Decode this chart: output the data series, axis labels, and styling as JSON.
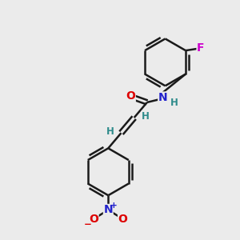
{
  "bg_color": "#ebebeb",
  "bond_color": "#1a1a1a",
  "bond_width": 1.8,
  "atom_colors": {
    "O": "#dd0000",
    "N": "#2222cc",
    "F": "#cc00cc",
    "H": "#2e8b8b",
    "C": "#1a1a1a"
  },
  "font_size": 9.5,
  "fig_width": 3.0,
  "fig_height": 3.0,
  "xlim": [
    0,
    10
  ],
  "ylim": [
    0,
    10
  ]
}
